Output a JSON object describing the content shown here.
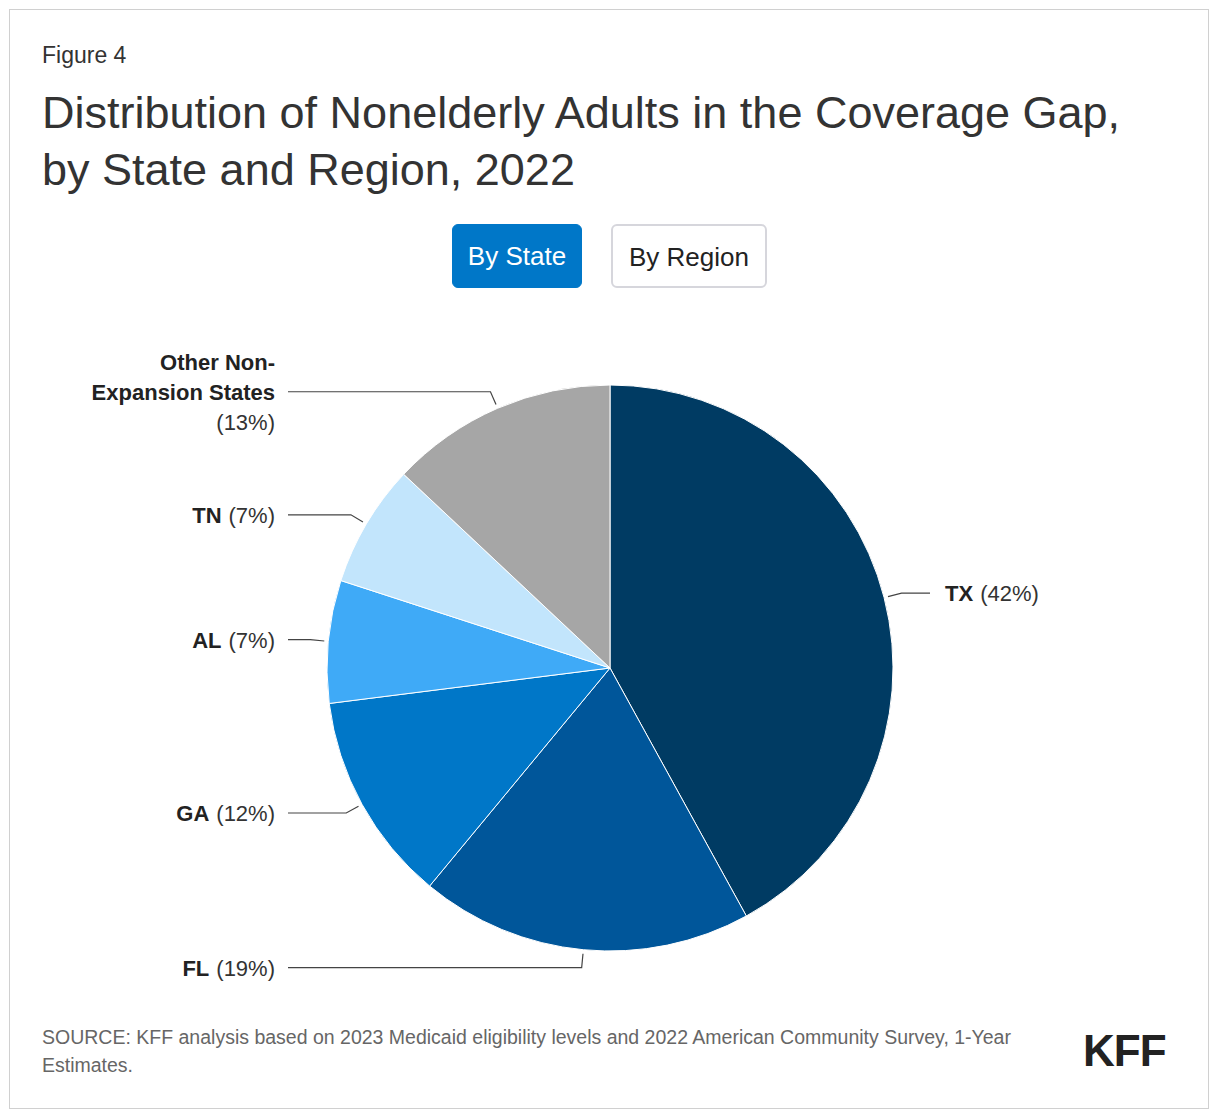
{
  "chart_data": {
    "type": "pie",
    "figure_label": "Figure 4",
    "title": "Distribution of Nonelderly Adults in the Coverage Gap, by State and Region, 2022",
    "buttons": [
      "By State",
      "By Region"
    ],
    "categories": [
      "TX",
      "FL",
      "GA",
      "AL",
      "TN",
      "Other Non-Expansion States"
    ],
    "values": [
      42,
      19,
      12,
      7,
      7,
      13
    ],
    "value_labels": [
      "(42%)",
      "(19%)",
      "(12%)",
      "(7%)",
      "(7%)",
      "(13%)"
    ],
    "colors": [
      "#003b63",
      "#00569a",
      "#0077c8",
      "#3faaf7",
      "#c2e5fc",
      "#a6a6a6"
    ],
    "data_labels": true,
    "source": "SOURCE: KFF analysis based on 2023 Medicaid eligibility levels and 2022 American Community Survey, 1-Year Estimates.",
    "logo": "KFF"
  }
}
